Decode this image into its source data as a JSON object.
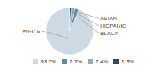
{
  "chart_data": {
    "type": "pie",
    "categories": [
      "WHITE",
      "ASIAN",
      "HISPANIC",
      "BLACK"
    ],
    "values": [
      93.6,
      2.7,
      2.4,
      1.3
    ],
    "colors": [
      "#cdd9e3",
      "#5b8fa8",
      "#8aafc4",
      "#2c4a5e"
    ],
    "value_labels": [
      "93.6%",
      "2.7%",
      "2.4%",
      "1.3%"
    ],
    "legend": "bottom"
  }
}
